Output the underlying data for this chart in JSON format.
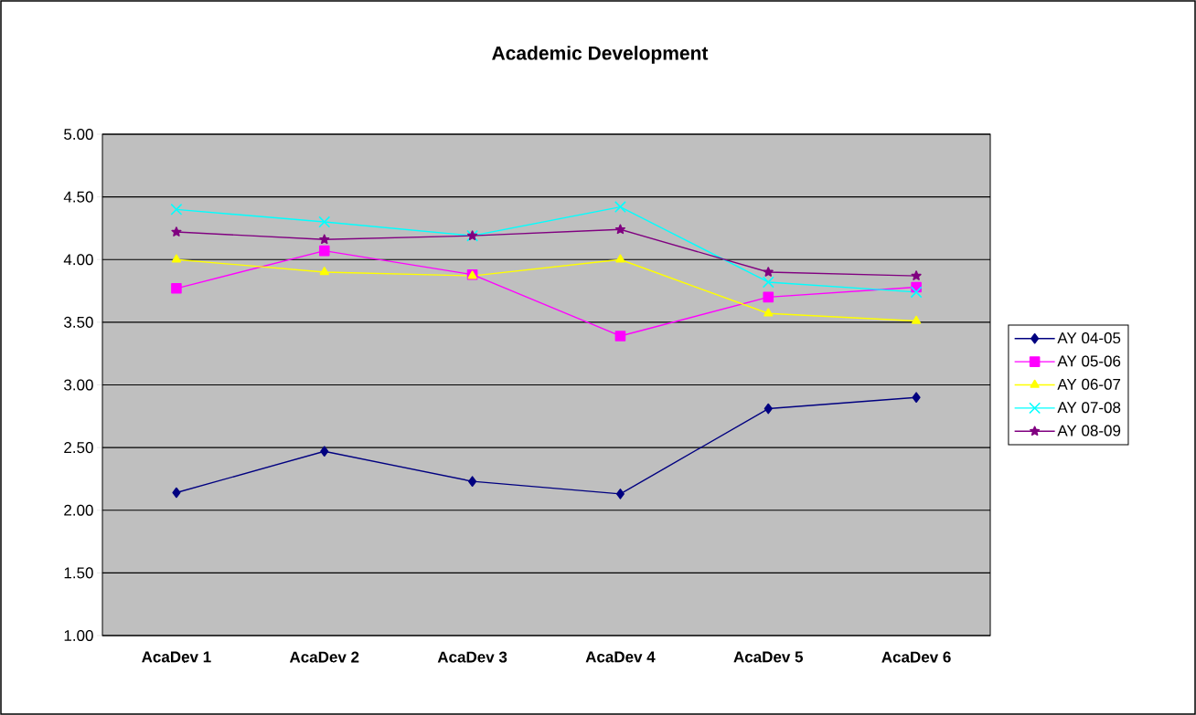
{
  "chart_data": {
    "type": "line",
    "title": "Academic Development",
    "categories": [
      "AcaDev 1",
      "AcaDev 2",
      "AcaDev 3",
      "AcaDev 4",
      "AcaDev 5",
      "AcaDev 6"
    ],
    "series": [
      {
        "name": "AY 04-05",
        "color": "#000080",
        "marker": "diamond",
        "values": [
          2.14,
          2.47,
          2.23,
          2.13,
          2.81,
          2.9
        ]
      },
      {
        "name": "AY 05-06",
        "color": "#ff00ff",
        "marker": "square",
        "values": [
          3.77,
          4.07,
          3.88,
          3.39,
          3.7,
          3.78
        ]
      },
      {
        "name": "AY 06-07",
        "color": "#ffff00",
        "marker": "triangle",
        "values": [
          4.0,
          3.9,
          3.87,
          4.0,
          3.57,
          3.51
        ]
      },
      {
        "name": "AY 07-08",
        "color": "#00ffff",
        "marker": "cross",
        "values": [
          4.4,
          4.3,
          4.19,
          4.42,
          3.82,
          3.74
        ]
      },
      {
        "name": "AY 08-09",
        "color": "#800080",
        "marker": "star",
        "values": [
          4.22,
          4.16,
          4.19,
          4.24,
          3.9,
          3.87
        ]
      }
    ],
    "ylim": [
      1,
      5
    ],
    "yticks": [
      {
        "value": 1,
        "label": "1.00"
      },
      {
        "value": 1.5,
        "label": "1.50"
      },
      {
        "value": 2,
        "label": "2.00"
      },
      {
        "value": 2.5,
        "label": "2.50"
      },
      {
        "value": 3,
        "label": "3.00"
      },
      {
        "value": 3.5,
        "label": "3.50"
      },
      {
        "value": 4,
        "label": "4.00"
      },
      {
        "value": 4.5,
        "label": "4.50"
      },
      {
        "value": 5,
        "label": "5.00"
      }
    ],
    "grid": "y",
    "legend": "right"
  }
}
